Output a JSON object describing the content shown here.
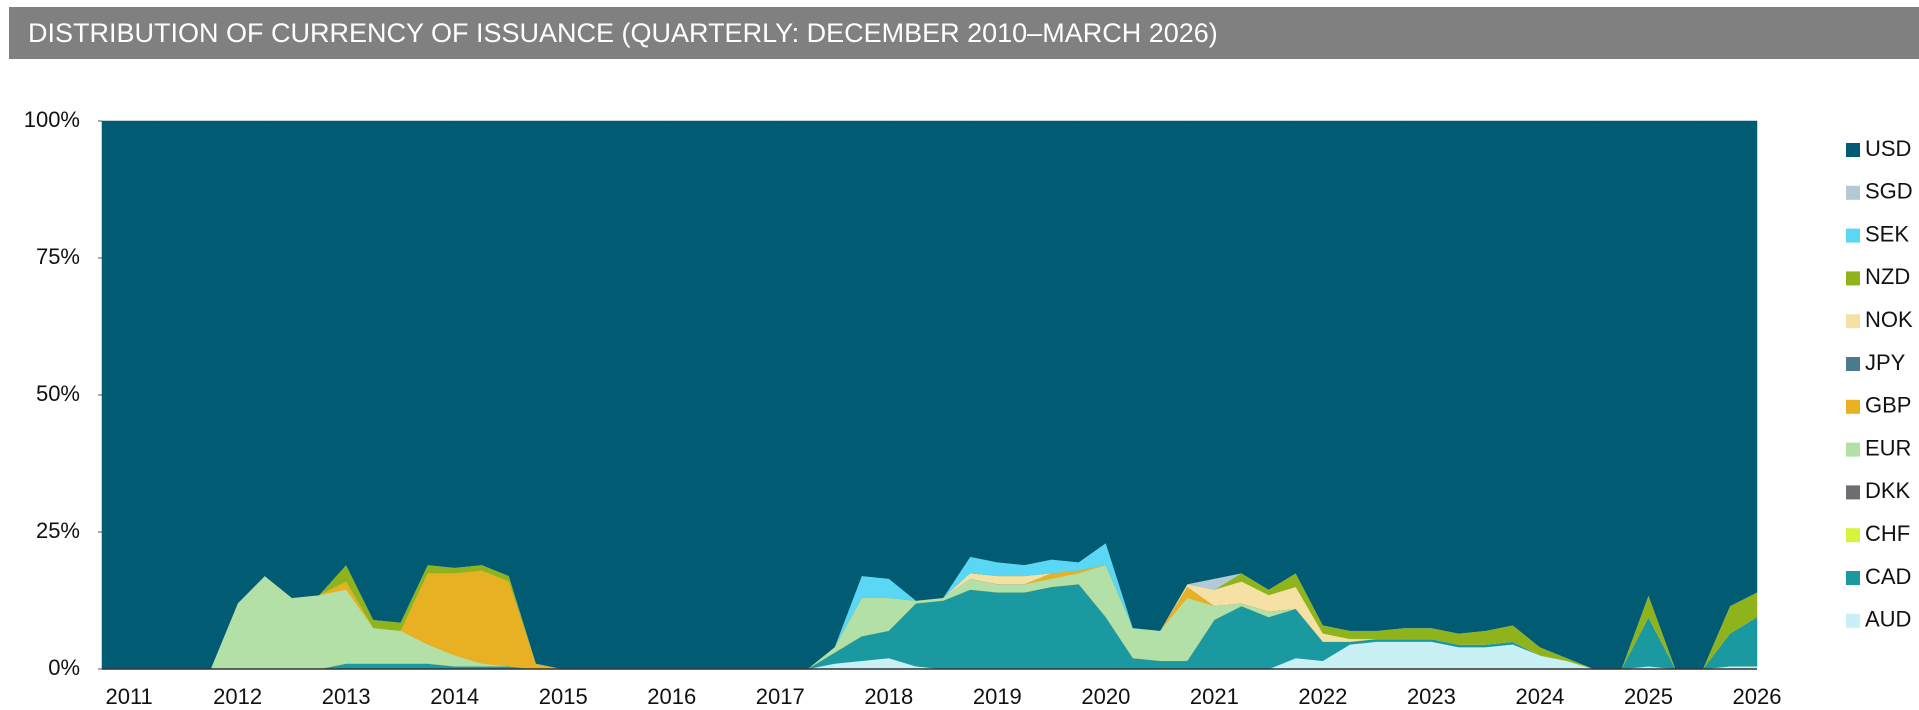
{
  "chart_data": {
    "type": "stacked_area",
    "title": "DISTRIBUTION OF CURRENCY OF ISSUANCE (QUARTERLY: DECEMBER 2010–MARCH 2026)",
    "categories": [
      null,
      "2011",
      null,
      null,
      null,
      "2012",
      null,
      null,
      null,
      "2013",
      null,
      null,
      null,
      "2014",
      null,
      null,
      null,
      "2015",
      null,
      null,
      null,
      "2016",
      null,
      null,
      null,
      "2017",
      null,
      null,
      null,
      "2018",
      null,
      null,
      null,
      "2019",
      null,
      null,
      null,
      "2020",
      null,
      null,
      null,
      "2021",
      null,
      null,
      null,
      "2022",
      null,
      null,
      null,
      "2023",
      null,
      null,
      null,
      "2024",
      null,
      null,
      null,
      "2025",
      null,
      null,
      null,
      "2026"
    ],
    "ylim": [
      0,
      100
    ],
    "yticks": [
      {
        "value": 0,
        "label": "0%"
      },
      {
        "value": 25,
        "label": "25%"
      },
      {
        "value": 50,
        "label": "50%"
      },
      {
        "value": 75,
        "label": "75%"
      },
      {
        "value": 100,
        "label": "100%"
      }
    ],
    "legend": "right",
    "series": [
      {
        "name": "AUD",
        "color": "#c8f0f5",
        "values": [
          0,
          0,
          0,
          0,
          0,
          0,
          0,
          0,
          0,
          0,
          0,
          0,
          0,
          0,
          0,
          0,
          0,
          0,
          0,
          0,
          0,
          0,
          0,
          0,
          0,
          0,
          0,
          1,
          1.5,
          2,
          0.5,
          0,
          0,
          0,
          0,
          0,
          0,
          0,
          0,
          0,
          0,
          0,
          0,
          0,
          2,
          1.5,
          4.5,
          5,
          5,
          5,
          4,
          4,
          4.5,
          2.5,
          1.5,
          0,
          0,
          0.5,
          0,
          0,
          0.5,
          0.5
        ]
      },
      {
        "name": "CAD",
        "color": "#1a9aa0",
        "values": [
          0,
          0,
          0,
          0,
          0,
          0,
          0,
          0,
          0,
          1,
          1,
          1,
          1,
          0.5,
          0.5,
          0.5,
          0,
          0,
          0,
          0,
          0,
          0,
          0,
          0,
          0,
          0,
          0,
          2,
          4.5,
          5,
          11.5,
          12.5,
          14.5,
          14,
          14,
          15,
          15.5,
          9.5,
          2,
          1.5,
          1.5,
          9,
          11.5,
          9.5,
          9,
          3.5,
          0.5,
          0.5,
          0.5,
          0.5,
          0.5,
          0.5,
          0.5,
          0,
          0,
          0,
          0,
          9,
          0,
          0,
          6,
          9
        ]
      },
      {
        "name": "CHF",
        "color": "#d5f53d",
        "values": [
          0,
          0,
          0,
          0,
          0,
          0,
          0,
          0,
          0,
          0,
          0,
          0,
          0,
          0,
          0,
          0,
          0,
          0,
          0,
          0,
          0,
          0,
          0,
          0,
          0,
          0,
          0,
          0,
          0,
          0,
          0,
          0,
          0,
          0,
          0,
          0,
          0,
          0,
          0,
          0,
          0,
          0,
          0,
          0,
          0,
          0,
          0,
          0,
          0,
          0,
          0,
          0,
          0,
          0,
          0,
          0,
          0,
          0,
          0,
          0,
          0,
          0
        ]
      },
      {
        "name": "DKK",
        "color": "#6d6e71",
        "values": [
          0,
          0,
          0,
          0,
          0,
          0,
          0,
          0,
          0,
          0,
          0,
          0,
          0,
          0,
          0,
          0,
          0,
          0,
          0,
          0,
          0,
          0,
          0,
          0,
          0,
          0,
          0,
          0,
          0,
          0,
          0,
          0,
          0,
          0,
          0,
          0,
          0,
          0,
          0,
          0,
          0,
          0,
          0,
          0,
          0,
          0,
          0,
          0,
          0,
          0,
          0,
          0,
          0,
          0,
          0,
          0,
          0,
          0,
          0,
          0,
          0,
          0
        ]
      },
      {
        "name": "EUR",
        "color": "#b3e0a6",
        "values": [
          0,
          0,
          0,
          0,
          0,
          12,
          17,
          13,
          13.5,
          13.5,
          6.5,
          6,
          3.5,
          2,
          0.5,
          0,
          0,
          0,
          0,
          0,
          0,
          0,
          0,
          0,
          0,
          0,
          0,
          1,
          7,
          6,
          0.5,
          0.5,
          2,
          1.5,
          1.5,
          1.5,
          2,
          9.5,
          5.5,
          5.5,
          11.5,
          2.5,
          0.5,
          1,
          0,
          0,
          0,
          0,
          0,
          0,
          0,
          0,
          0,
          0,
          0,
          0,
          0,
          0,
          0,
          0,
          0,
          0
        ]
      },
      {
        "name": "GBP",
        "color": "#e8b023",
        "values": [
          0,
          0,
          0,
          0,
          0,
          0,
          0,
          0,
          0,
          1.5,
          0,
          0,
          13,
          15,
          17,
          15.5,
          1,
          0,
          0,
          0,
          0,
          0,
          0,
          0,
          0,
          0,
          0,
          0,
          0,
          0,
          0,
          0,
          0,
          0,
          0,
          1,
          0.5,
          0,
          0,
          0,
          2,
          0,
          0,
          0,
          0,
          0,
          0,
          0,
          0,
          0,
          0,
          0,
          0,
          0,
          0,
          0,
          0,
          0,
          0,
          0,
          0,
          0
        ]
      },
      {
        "name": "JPY",
        "color": "#4a7a90",
        "values": [
          0,
          0,
          0,
          0,
          0,
          0,
          0,
          0,
          0,
          0,
          0,
          0,
          0,
          0,
          0,
          0,
          0,
          0,
          0,
          0,
          0,
          0,
          0,
          0,
          0,
          0,
          0,
          0,
          0,
          0,
          0,
          0,
          0,
          0,
          0,
          0,
          0,
          0,
          0,
          0,
          0,
          0,
          0,
          0,
          0,
          0,
          0,
          0,
          0,
          0,
          0,
          0,
          0,
          0,
          0,
          0,
          0,
          0,
          0,
          0,
          0,
          0
        ]
      },
      {
        "name": "NOK",
        "color": "#f5e1a4",
        "values": [
          0,
          0,
          0,
          0,
          0,
          0,
          0,
          0,
          0,
          0,
          0,
          0,
          0,
          0,
          0,
          0,
          0,
          0,
          0,
          0,
          0,
          0,
          0,
          0,
          0,
          0,
          0,
          0,
          0,
          0,
          0,
          0,
          1,
          1.5,
          1.5,
          0,
          0,
          0,
          0,
          0,
          0.5,
          3,
          4,
          3,
          4,
          1.5,
          0.5,
          0,
          0,
          0,
          0,
          0,
          0,
          0,
          0,
          0,
          0,
          0,
          0,
          0,
          0,
          0
        ]
      },
      {
        "name": "NZD",
        "color": "#8fb31a",
        "values": [
          0,
          0,
          0,
          0,
          0,
          0,
          0,
          0,
          0,
          3,
          1.5,
          1.5,
          1.5,
          1,
          1,
          1,
          0,
          0,
          0,
          0,
          0,
          0,
          0,
          0,
          0,
          0,
          0,
          0,
          0,
          0,
          0,
          0,
          0,
          0,
          0,
          0,
          0,
          0,
          0,
          0,
          0,
          0,
          1.5,
          1,
          2.5,
          1.5,
          1.5,
          1.5,
          2,
          2,
          2,
          2.5,
          3,
          1.5,
          0.5,
          0,
          0,
          4,
          0,
          0,
          5,
          4.5
        ]
      },
      {
        "name": "SEK",
        "color": "#5ad7f5",
        "values": [
          0,
          0,
          0,
          0,
          0,
          0,
          0,
          0,
          0,
          0,
          0,
          0,
          0,
          0,
          0,
          0,
          0,
          0,
          0,
          0,
          0,
          0,
          0,
          0,
          0,
          0,
          0,
          0,
          4,
          3.5,
          0,
          0,
          3,
          2.5,
          2,
          2.5,
          1.5,
          4,
          0,
          0,
          0,
          0,
          0,
          0,
          0,
          0,
          0,
          0,
          0,
          0,
          0,
          0,
          0,
          0,
          0,
          0,
          0,
          0,
          0,
          0,
          0,
          0
        ]
      },
      {
        "name": "SGD",
        "color": "#b4c8d6",
        "values": [
          0,
          0,
          0,
          0,
          0,
          0,
          0,
          0,
          0,
          0,
          0,
          0,
          0,
          0,
          0,
          0,
          0,
          0,
          0,
          0,
          0,
          0,
          0,
          0,
          0,
          0,
          0,
          0,
          0,
          0,
          0,
          0,
          0,
          0,
          0,
          0,
          0,
          0,
          0,
          0,
          0,
          2,
          0,
          0,
          0,
          0,
          0,
          0,
          0,
          0,
          0,
          0,
          0,
          0,
          0,
          0,
          0,
          0,
          0,
          0,
          0,
          0
        ]
      },
      {
        "name": "USD",
        "color": "#005b73",
        "values": [
          100,
          100,
          100,
          100,
          100,
          88,
          83,
          87,
          86.5,
          81,
          91,
          91.5,
          81,
          81.5,
          81,
          83,
          99,
          100,
          100,
          100,
          100,
          100,
          100,
          100,
          100,
          100,
          100,
          96,
          83,
          83.5,
          87.5,
          87,
          79.5,
          80.5,
          81,
          80,
          80.5,
          77,
          92.5,
          93,
          84.5,
          83.5,
          82.5,
          85.5,
          82.5,
          92,
          93,
          93,
          92.5,
          92.5,
          93.5,
          93,
          92,
          96,
          98,
          100,
          100,
          86.5,
          100,
          100,
          88.5,
          86
        ]
      }
    ]
  }
}
